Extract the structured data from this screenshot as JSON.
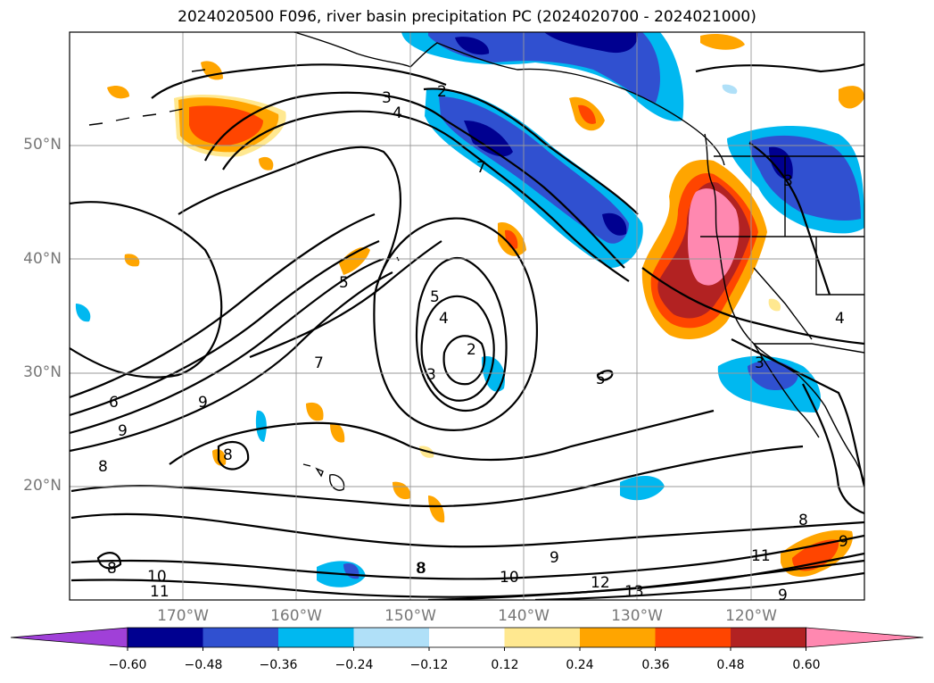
{
  "title": "2024020500 F096, river basin precipitation PC (2024020700 - 2024021000)",
  "lat_labels": [
    "50°N",
    "40°N",
    "30°N",
    "20°N"
  ],
  "lon_labels": [
    "170°W",
    "160°W",
    "150°W",
    "140°W",
    "130°W",
    "120°W"
  ],
  "colorbar": {
    "colors": [
      "#a040d8",
      "#000090",
      "#3050d0",
      "#00b8f0",
      "#b0e0f8",
      "#ffffff",
      "#ffe890",
      "#ffa500",
      "#ff4500",
      "#b22222",
      "#ff88b0"
    ],
    "ticks": [
      "−0.60",
      "−0.48",
      "−0.36",
      "−0.24",
      "−0.12",
      "0.12",
      "0.24",
      "0.36",
      "0.48",
      "0.60"
    ]
  },
  "contour_labels": [
    "2",
    "3",
    "4",
    "7",
    "5",
    "5",
    "4",
    "3",
    "2",
    "7",
    "6",
    "9",
    "9",
    "8",
    "8",
    "9",
    "8",
    "10",
    "11",
    "10",
    "9",
    "12",
    "13",
    "11",
    "8",
    "9",
    "4",
    "3",
    "3",
    "5",
    "8",
    "8"
  ]
}
